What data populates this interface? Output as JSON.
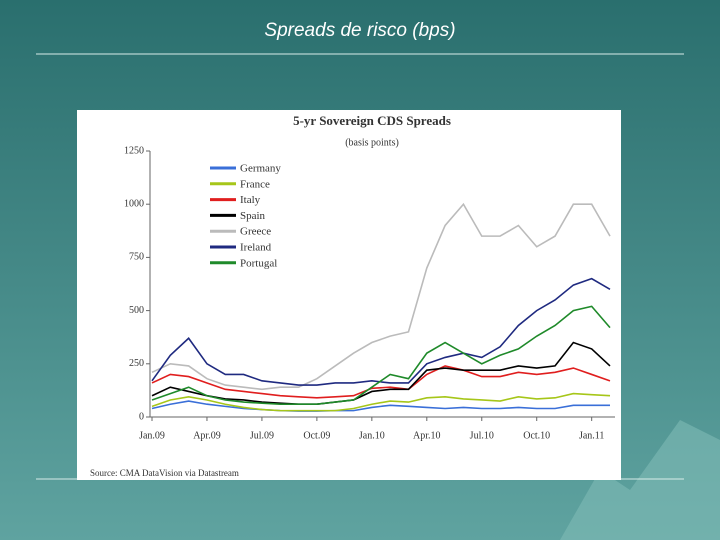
{
  "slide_title": "Spreads de risco (bps)",
  "chart_data": {
    "type": "line",
    "title": "5-yr Sovereign CDS Spreads",
    "subtitle": "(basis points)",
    "source": "Source: CMA DataVision via Datastream",
    "x": [
      "2009-01",
      "2009-02",
      "2009-03",
      "2009-04",
      "2009-05",
      "2009-06",
      "2009-07",
      "2009-08",
      "2009-09",
      "2009-10",
      "2009-11",
      "2009-12",
      "2010-01",
      "2010-02",
      "2010-03",
      "2010-04",
      "2010-05",
      "2010-06",
      "2010-07",
      "2010-08",
      "2010-09",
      "2010-10",
      "2010-11",
      "2010-12",
      "2011-01",
      "2011-02"
    ],
    "xlim": [
      "2009-01",
      "2011-02"
    ],
    "xticks": [
      {
        "value": "2009-01",
        "label": "Jan.09"
      },
      {
        "value": "2009-04",
        "label": "Apr.09"
      },
      {
        "value": "2009-07",
        "label": "Jul.09"
      },
      {
        "value": "2009-10",
        "label": "Oct.09"
      },
      {
        "value": "2010-01",
        "label": "Jan.10"
      },
      {
        "value": "2010-04",
        "label": "Apr.10"
      },
      {
        "value": "2010-07",
        "label": "Jul.10"
      },
      {
        "value": "2010-10",
        "label": "Oct.10"
      },
      {
        "value": "2011-01",
        "label": "Jan.11"
      }
    ],
    "ylim": [
      0,
      1250
    ],
    "yticks": [
      0,
      250,
      500,
      750,
      1000,
      1250
    ],
    "grid": false,
    "legend": "upper-left",
    "series": [
      {
        "name": "Germany",
        "color": "#3a6fd8",
        "values": [
          40,
          60,
          75,
          60,
          50,
          40,
          35,
          30,
          28,
          28,
          30,
          30,
          45,
          55,
          50,
          45,
          40,
          45,
          40,
          40,
          45,
          40,
          40,
          55,
          55,
          55
        ]
      },
      {
        "name": "France",
        "color": "#a6c619",
        "values": [
          50,
          80,
          95,
          80,
          60,
          45,
          35,
          30,
          30,
          30,
          30,
          40,
          60,
          75,
          70,
          90,
          95,
          85,
          80,
          75,
          95,
          85,
          90,
          110,
          105,
          100
        ]
      },
      {
        "name": "Italy",
        "color": "#e01e1e",
        "values": [
          160,
          200,
          190,
          160,
          130,
          120,
          110,
          100,
          95,
          90,
          95,
          100,
          135,
          140,
          130,
          200,
          240,
          220,
          190,
          190,
          210,
          200,
          210,
          230,
          200,
          170
        ]
      },
      {
        "name": "Spain",
        "color": "#000000",
        "values": [
          100,
          140,
          120,
          100,
          85,
          80,
          70,
          65,
          60,
          60,
          70,
          80,
          120,
          130,
          130,
          220,
          230,
          220,
          220,
          220,
          240,
          230,
          240,
          350,
          320,
          240
        ]
      },
      {
        "name": "Greece",
        "color": "#bbbbbb",
        "values": [
          210,
          250,
          240,
          180,
          150,
          140,
          130,
          140,
          140,
          180,
          240,
          300,
          350,
          380,
          400,
          700,
          900,
          1000,
          850,
          850,
          900,
          800,
          850,
          1000,
          1000,
          850
        ]
      },
      {
        "name": "Ireland",
        "color": "#1f2a80",
        "values": [
          170,
          290,
          370,
          250,
          200,
          200,
          170,
          160,
          150,
          150,
          160,
          160,
          170,
          160,
          160,
          250,
          280,
          300,
          280,
          330,
          430,
          500,
          550,
          620,
          650,
          600
        ]
      },
      {
        "name": "Portugal",
        "color": "#1f8a2a",
        "values": [
          80,
          110,
          140,
          100,
          80,
          70,
          65,
          60,
          60,
          60,
          70,
          80,
          140,
          200,
          180,
          300,
          350,
          300,
          250,
          290,
          320,
          380,
          430,
          500,
          520,
          420
        ]
      }
    ]
  }
}
